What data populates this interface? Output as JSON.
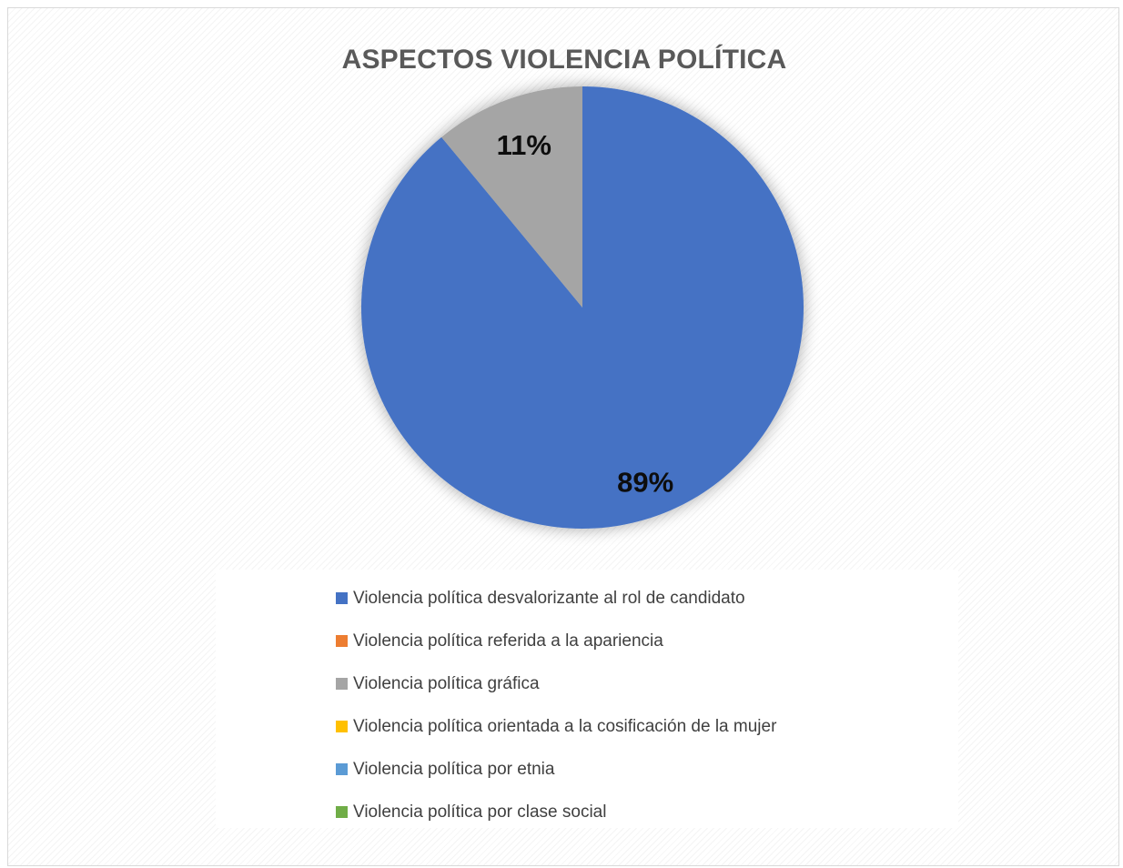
{
  "chart_data": {
    "type": "pie",
    "title": "ASPECTOS VIOLENCIA POLÍTICA",
    "legend_position": "bottom",
    "series": [
      {
        "categories": [
          "Violencia política desvalorizante al rol de candidato",
          "Violencia política referida a la apariencia",
          "Violencia política gráfica",
          "Violencia política orientada a la cosificación de la mujer",
          "Violencia política por etnia",
          "Violencia política por clase social"
        ],
        "values": [
          89,
          0,
          11,
          0,
          0,
          0
        ],
        "data_labels": [
          "89%",
          "",
          "11%",
          "",
          "",
          ""
        ],
        "colors": [
          "#4472C4",
          "#ED7D31",
          "#A5A5A5",
          "#FFC000",
          "#5B9BD5",
          "#70AD47"
        ]
      }
    ]
  }
}
